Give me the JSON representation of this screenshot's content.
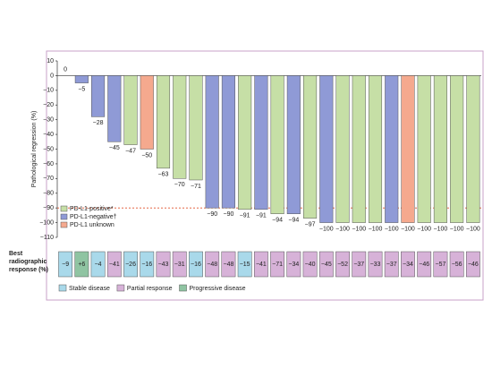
{
  "chart_data": {
    "type": "bar",
    "y_label": "Pathological regression (%)",
    "values": [
      0,
      -5,
      -28,
      -45,
      -47,
      -50,
      -63,
      -70,
      -71,
      -90,
      -90,
      -91,
      -91,
      -94,
      -94,
      -97,
      -100,
      -100,
      -100,
      -100,
      -100,
      -100,
      -100,
      -100,
      -100,
      -100
    ],
    "value_labels": [
      "0",
      "−5",
      "−28",
      "−45",
      "−47",
      "−50",
      "−63",
      "−70",
      "−71",
      "−90",
      "−90",
      "−91",
      "−91",
      "−94",
      "−94",
      "−97",
      "−100",
      "−100",
      "−100",
      "−100",
      "−100",
      "−100",
      "−100",
      "−100",
      "−100",
      "−100"
    ],
    "colors": [
      "#c6dfa6",
      "#8f9ad6",
      "#8f9ad6",
      "#8f9ad6",
      "#c6dfa6",
      "#f5a98e",
      "#c6dfa6",
      "#c6dfa6",
      "#c6dfa6",
      "#8f9ad6",
      "#8f9ad6",
      "#c6dfa6",
      "#8f9ad6",
      "#c6dfa6",
      "#8f9ad6",
      "#c6dfa6",
      "#8f9ad6",
      "#c6dfa6",
      "#c6dfa6",
      "#c6dfa6",
      "#8f9ad6",
      "#f5a98e",
      "#c6dfa6",
      "#c6dfa6",
      "#c6dfa6",
      "#c6dfa6"
    ],
    "legend": [
      {
        "name": "PD-L1-positive*",
        "color": "#c6dfa6"
      },
      {
        "name": "PD-L1-negative†",
        "color": "#8f9ad6"
      },
      {
        "name": "PD-L1 unknown",
        "color": "#f5a98e"
      }
    ],
    "threshold": -90,
    "ylim": [
      -110,
      10
    ],
    "yticks": [
      {
        "value": 10,
        "label": "10"
      },
      0,
      {
        "value": -10,
        "label": "−10"
      },
      {
        "value": -20,
        "label": "−20"
      },
      {
        "value": -30,
        "label": "−30"
      },
      {
        "value": -40,
        "label": "−40"
      },
      {
        "value": -50,
        "label": "−50"
      },
      {
        "value": -60,
        "label": "−60"
      },
      {
        "value": -70,
        "label": "−70"
      },
      {
        "value": -80,
        "label": "−80"
      },
      {
        "value": -90,
        "label": "−90"
      },
      {
        "value": -100,
        "label": "−100"
      },
      {
        "value": -110,
        "label": "−110"
      }
    ],
    "radiographic": {
      "title": "Best radiographic response (%)",
      "values": [
        -9,
        6,
        -4,
        -41,
        -26,
        -16,
        -43,
        -31,
        -16,
        -48,
        -48,
        -15,
        -41,
        -71,
        -34,
        -40,
        -45,
        -52,
        -37,
        -33,
        -37,
        -34,
        -46,
        -57,
        -56,
        -46
      ],
      "value_labels": [
        "−9",
        "+6",
        "−4",
        "−41",
        "−26",
        "−16",
        "−43",
        "−31",
        "−16",
        "−48",
        "−48",
        "−15",
        "−41",
        "−71",
        "−34",
        "−40",
        "−45",
        "−52",
        "−37",
        "−33",
        "−37",
        "−34",
        "−46",
        "−57",
        "−56",
        "−46"
      ],
      "colors": [
        "#a9d9ea",
        "#8fc4a2",
        "#a9d9ea",
        "#d7b2d8",
        "#a9d9ea",
        "#a9d9ea",
        "#d7b2d8",
        "#d7b2d8",
        "#a9d9ea",
        "#d7b2d8",
        "#d7b2d8",
        "#a9d9ea",
        "#d7b2d8",
        "#d7b2d8",
        "#d7b2d8",
        "#d7b2d8",
        "#d7b2d8",
        "#d7b2d8",
        "#d7b2d8",
        "#d7b2d8",
        "#d7b2d8",
        "#d7b2d8",
        "#d7b2d8",
        "#d7b2d8",
        "#d7b2d8",
        "#d7b2d8"
      ],
      "legend": [
        {
          "name": "Stable disease",
          "color": "#a9d9ea"
        },
        {
          "name": "Partial response",
          "color": "#d7b2d8"
        },
        {
          "name": "Progressive disease",
          "color": "#8fc4a2"
        }
      ]
    }
  }
}
